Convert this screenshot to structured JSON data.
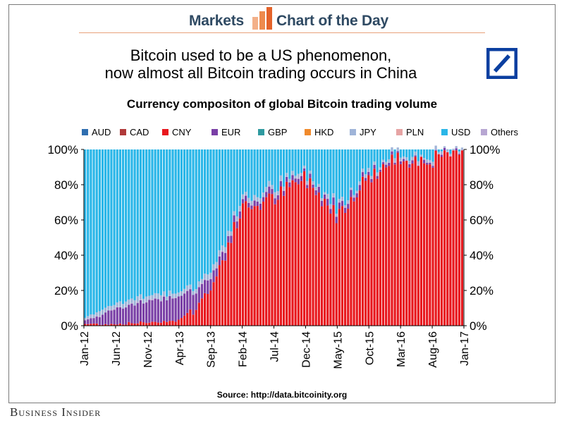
{
  "banner": {
    "left_text": "Markets",
    "right_text": "Chart of the Day"
  },
  "headline": {
    "line1": "Bitcoin used to be a US phenomenon,",
    "line2": "now almost all Bitcoin trading occurs in China"
  },
  "source": "Source: http://data.bitcoinity.org",
  "publisher": "Business Insider",
  "logos": [
    "markets-chart-icon",
    "deutsche-bank-logo"
  ],
  "chart_data": {
    "type": "bar",
    "stacked": true,
    "title": "Currency compositon of global Bitcoin trading volume",
    "xlabel": "",
    "ylabel": "",
    "ylim": [
      0,
      100
    ],
    "y_ticks": [
      "0%",
      "20%",
      "40%",
      "60%",
      "80%",
      "100%"
    ],
    "y_axis_sides": "left-and-right",
    "grid": false,
    "legend_position": "top",
    "x_tick_labels": [
      "Jan-12",
      "Jun-12",
      "Nov-12",
      "Apr-13",
      "Sep-13",
      "Feb-14",
      "Jul-14",
      "Dec-14",
      "May-15",
      "Oct-15",
      "Mar-16",
      "Aug-16",
      "Jan-17"
    ],
    "x_start": "2012-01",
    "x_end": "2017-01",
    "legend": [
      {
        "name": "AUD",
        "color": "#2f6eb0"
      },
      {
        "name": "CAD",
        "color": "#b03a3a"
      },
      {
        "name": "CNY",
        "color": "#e8171d"
      },
      {
        "name": "EUR",
        "color": "#7a3fa6"
      },
      {
        "name": "GBP",
        "color": "#2f9aa0"
      },
      {
        "name": "HKD",
        "color": "#f08a2c"
      },
      {
        "name": "JPY",
        "color": "#9fb4d8"
      },
      {
        "name": "PLN",
        "color": "#e6a4a4"
      },
      {
        "name": "USD",
        "color": "#2ab6e8"
      },
      {
        "name": "Others",
        "color": "#b7a6d2"
      }
    ],
    "monthly_cny_share_pct": [
      {
        "month": "2012-01",
        "CNY": 1,
        "EUR": 2,
        "JPY": 1,
        "USD": 95
      },
      {
        "month": "2012-06",
        "CNY": 1,
        "EUR": 9,
        "JPY": 2,
        "USD": 86
      },
      {
        "month": "2012-11",
        "CNY": 2,
        "EUR": 12,
        "JPY": 2,
        "USD": 82
      },
      {
        "month": "2013-04",
        "CNY": 3,
        "EUR": 14,
        "JPY": 2,
        "USD": 79
      },
      {
        "month": "2013-09",
        "CNY": 20,
        "EUR": 6,
        "JPY": 2,
        "USD": 70
      },
      {
        "month": "2014-02",
        "CNY": 66,
        "EUR": 3,
        "JPY": 2,
        "USD": 27
      },
      {
        "month": "2014-07",
        "CNY": 72,
        "EUR": 3,
        "JPY": 2,
        "USD": 21
      },
      {
        "month": "2014-12",
        "CNY": 84,
        "EUR": 2,
        "JPY": 1,
        "USD": 11
      },
      {
        "month": "2015-05",
        "CNY": 63,
        "EUR": 4,
        "JPY": 1,
        "USD": 30
      },
      {
        "month": "2015-10",
        "CNY": 84,
        "EUR": 2,
        "JPY": 1,
        "USD": 12
      },
      {
        "month": "2016-03",
        "CNY": 95,
        "EUR": 1,
        "JPY": 1,
        "USD": 3
      },
      {
        "month": "2016-08",
        "CNY": 94,
        "EUR": 1,
        "JPY": 1,
        "USD": 4
      },
      {
        "month": "2017-01",
        "CNY": 99,
        "EUR": 0,
        "JPY": 0,
        "USD": 1
      }
    ]
  }
}
